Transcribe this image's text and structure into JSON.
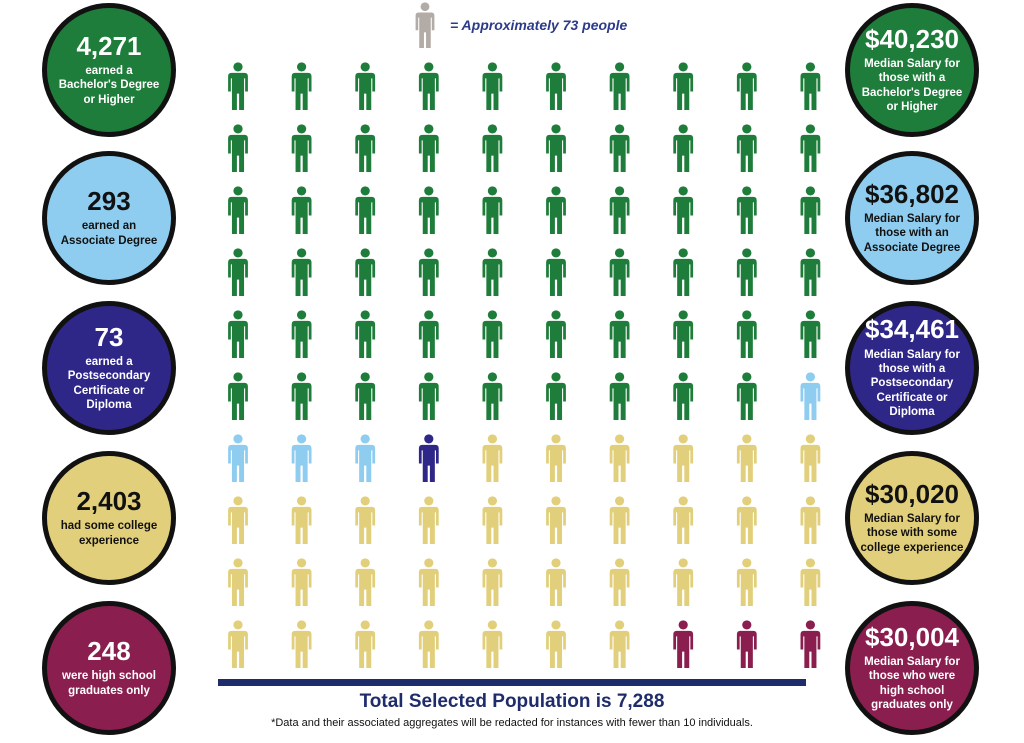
{
  "legend": {
    "text": "= Approximately 73 people",
    "icon_color": "#b3aba6",
    "icon": "person-icon"
  },
  "colors": {
    "bachelor": "#1e7d3a",
    "associate": "#8ecdf0",
    "certificate": "#2f2788",
    "some_college": "#e2cf7b",
    "high_school": "#8a1f4f"
  },
  "left_circles": [
    {
      "key": "bachelor",
      "value": "4,271",
      "label": "earned a Bachelor's Degree or Higher"
    },
    {
      "key": "associate",
      "value": "293",
      "label": "earned an Associate Degree"
    },
    {
      "key": "certificate",
      "value": "73",
      "label": "earned a Postsecondary Certificate or Diploma"
    },
    {
      "key": "some_college",
      "value": "2,403",
      "label": "had some college experience"
    },
    {
      "key": "high_school",
      "value": "248",
      "label": "were high school graduates only"
    }
  ],
  "right_circles": [
    {
      "key": "bachelor",
      "value": "$40,230",
      "label": "Median Salary for those with a Bachelor's Degree or Higher"
    },
    {
      "key": "associate",
      "value": "$36,802",
      "label": "Median Salary for those with an Associate Degree"
    },
    {
      "key": "certificate",
      "value": "$34,461",
      "label": "Median Salary for those with a Postsecondary Certificate or Diploma"
    },
    {
      "key": "some_college",
      "value": "$30,020",
      "label": "Median Salary for those with some college experience"
    },
    {
      "key": "high_school",
      "value": "$30,004",
      "label": "Median Salary for those who were high school graduates only"
    }
  ],
  "chart_data": {
    "type": "pictograph",
    "unit": "Approximately 73 people",
    "grid_columns": 10,
    "grid_rows": 10,
    "series": [
      {
        "name": "earned a Bachelor's Degree or Higher",
        "key": "bachelor",
        "count": 4271,
        "icons": 59,
        "median_salary": 40230
      },
      {
        "name": "earned an Associate Degree",
        "key": "associate",
        "count": 293,
        "icons": 4,
        "median_salary": 36802
      },
      {
        "name": "earned a Postsecondary Certificate or Diploma",
        "key": "certificate",
        "count": 73,
        "icons": 1,
        "median_salary": 34461
      },
      {
        "name": "had some college experience",
        "key": "some_college",
        "count": 2403,
        "icons": 33,
        "median_salary": 30020
      },
      {
        "name": "were high school graduates only",
        "key": "high_school",
        "count": 248,
        "icons": 3,
        "median_salary": 30004
      }
    ]
  },
  "total": "Total Selected Population is 7,288",
  "footnote": "*Data and their associated aggregates will be redacted for instances with fewer than 10 individuals."
}
